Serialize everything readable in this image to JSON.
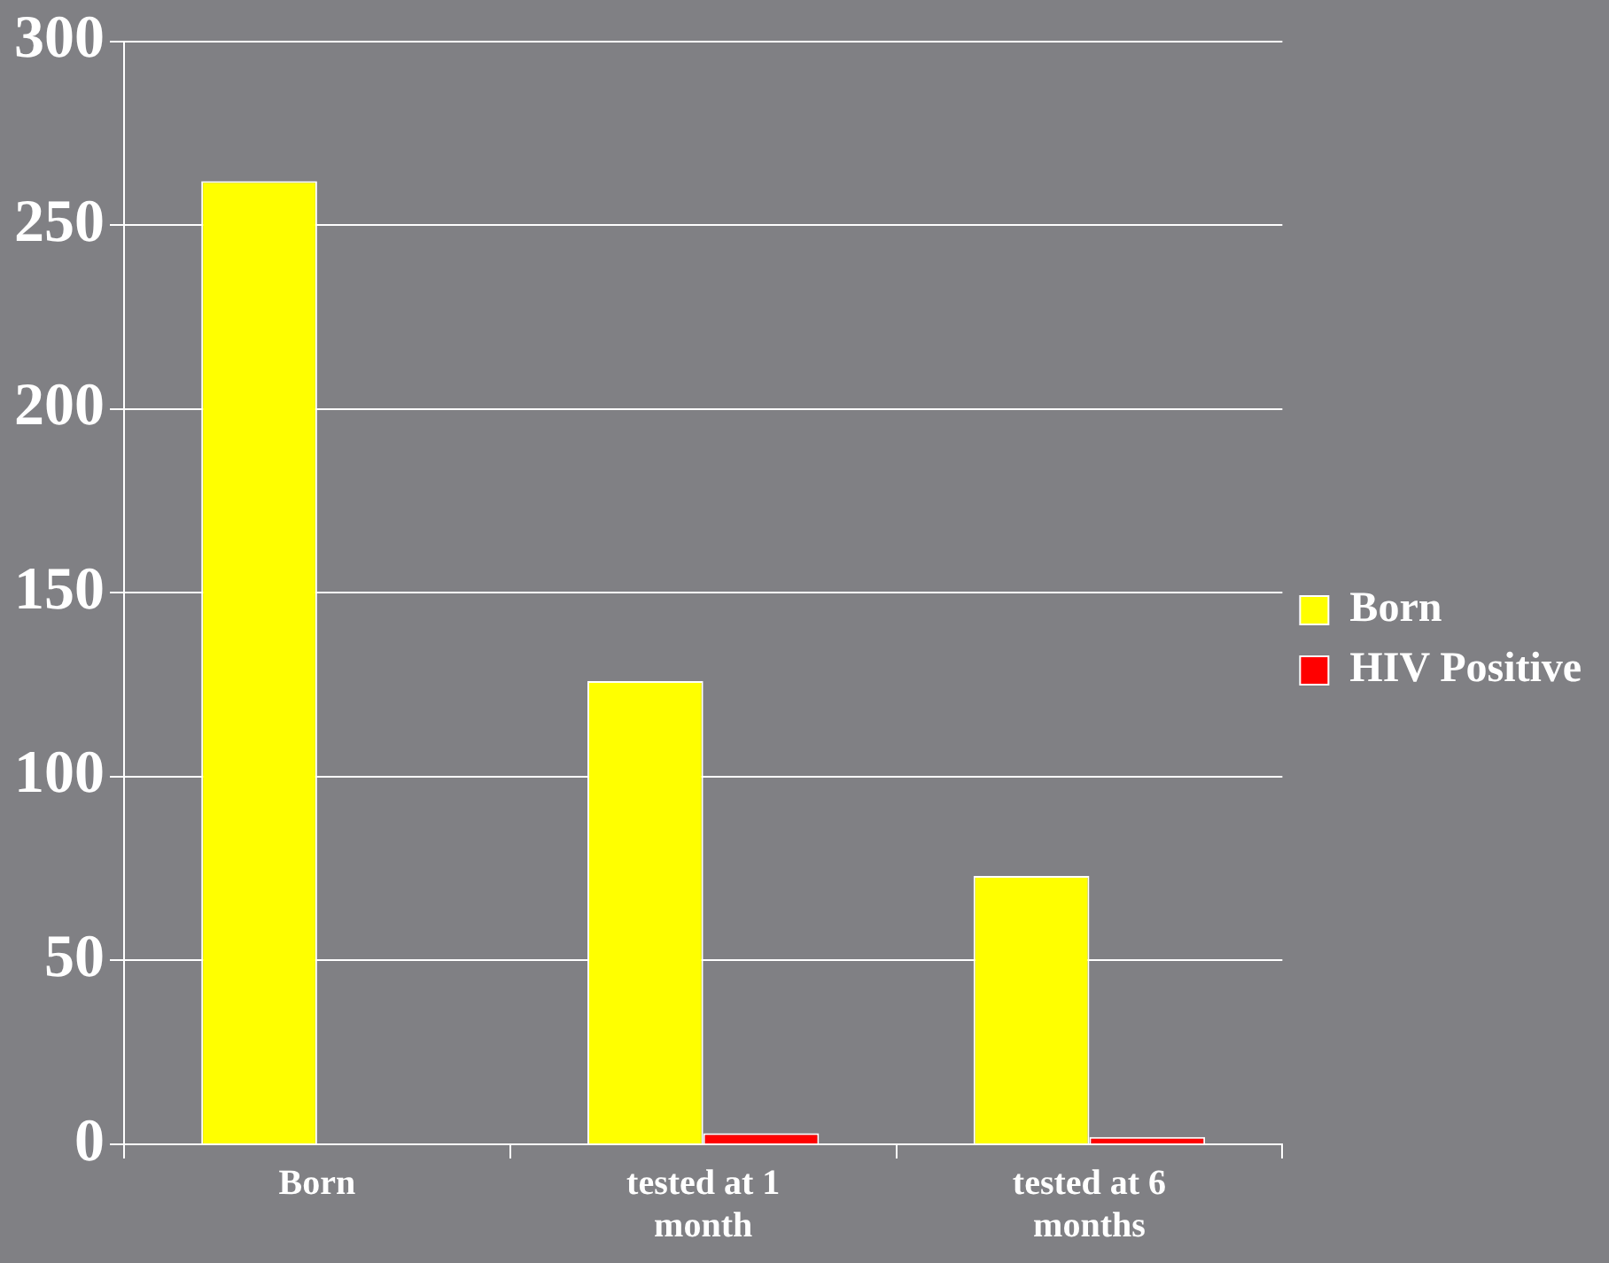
{
  "chart_data": {
    "type": "bar",
    "categories": [
      "Born",
      "tested at 1 month",
      "tested at 6 months"
    ],
    "series": [
      {
        "name": "Born",
        "color": "#ffff00",
        "values": [
          262,
          126,
          73
        ]
      },
      {
        "name": "HIV Positive",
        "color": "#ff0000",
        "values": [
          null,
          3,
          2
        ]
      }
    ],
    "ylim": [
      0,
      300
    ],
    "yticks": [
      0,
      50,
      100,
      150,
      200,
      250,
      300
    ],
    "grid": "y",
    "legend": "right"
  }
}
